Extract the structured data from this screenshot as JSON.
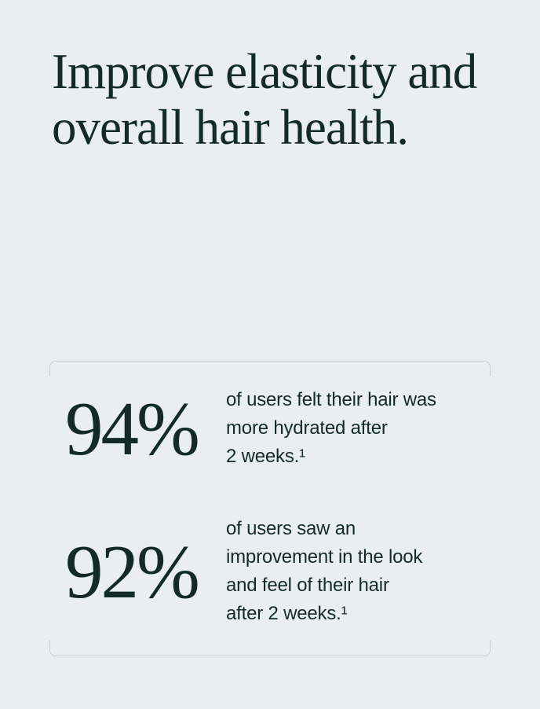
{
  "theme": {
    "colors": {
      "bg": "#e9eef2",
      "ink": "#132b26",
      "line": "#c7ced4"
    }
  },
  "heading": {
    "text": "Improve elasticity and\noverall hair health."
  },
  "stats": [
    {
      "value": "94%",
      "description": "of users felt their hair was\nmore hydrated after\n2 weeks.¹"
    },
    {
      "value": "92%",
      "description": "of users saw an\nimprovement in the look\nand feel of their hair\nafter 2 weeks.¹"
    }
  ]
}
